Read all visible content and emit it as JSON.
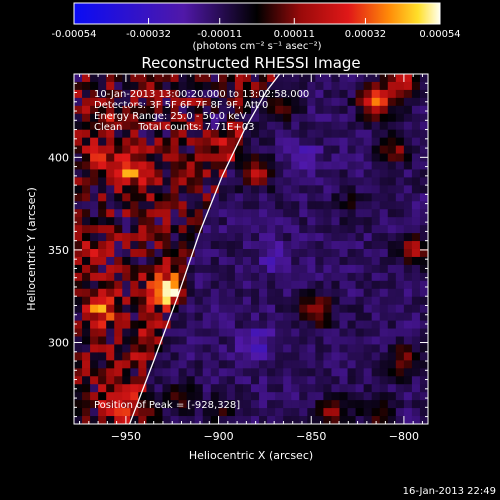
{
  "colorbar": {
    "ticks": [
      -0.00054,
      -0.00032,
      -0.00011,
      0.00011,
      0.00032,
      0.00054
    ],
    "tick_labels": [
      "-0.00054",
      "-0.00032",
      "-0.00011",
      "0.00011",
      "0.00032",
      "0.00054"
    ],
    "unit_label": "(photons cm⁻² s⁻¹ asec⁻²)",
    "range": [
      -0.00054,
      0.00054
    ]
  },
  "timestamp": "16-Jan-2013 22:49",
  "chart_data": {
    "type": "heatmap",
    "title": "Reconstructed RHESSI Image",
    "xlabel": "Heliocentric X (arcsec)",
    "ylabel": "Heliocentric Y (arcsec)",
    "xlim": [
      -978,
      -787
    ],
    "ylim": [
      256,
      445
    ],
    "xticks": [
      -950,
      -900,
      -850,
      -800
    ],
    "yticks": [
      300,
      350,
      400
    ],
    "annotations": [
      "10-Jan-2013 13:00:20.000 to 13:02:58.000",
      "Detectors: 3F 5F 6F 7F 8F 9F, Att 0",
      "Energy Range: 25.0 - 50.0 keV",
      "Clean     Total counts: 7.71E+03",
      "Position of Peak = [-928,328]"
    ],
    "peak": {
      "x": -928,
      "y": 328
    },
    "limb_curve": {
      "x": [
        -948,
        -935,
        -922,
        -910,
        -898,
        -886,
        -874,
        -867
      ],
      "y": [
        256,
        290,
        325,
        360,
        390,
        415,
        436,
        445
      ]
    },
    "sources": [
      {
        "x": -928,
        "y": 328,
        "value": 0.00054
      },
      {
        "x": -963,
        "y": 318,
        "value": 0.0003
      },
      {
        "x": -938,
        "y": 300,
        "value": 0.00018
      },
      {
        "x": -955,
        "y": 268,
        "value": 0.00034
      },
      {
        "x": -940,
        "y": 262,
        "value": 0.00022
      },
      {
        "x": -920,
        "y": 270,
        "value": 0.00016
      },
      {
        "x": -900,
        "y": 262,
        "value": 0.00012
      },
      {
        "x": -948,
        "y": 392,
        "value": 0.00034
      },
      {
        "x": -965,
        "y": 400,
        "value": 0.0002
      },
      {
        "x": -970,
        "y": 350,
        "value": 0.00018
      },
      {
        "x": -960,
        "y": 425,
        "value": 0.00012
      },
      {
        "x": -880,
        "y": 392,
        "value": 0.0003
      },
      {
        "x": -892,
        "y": 410,
        "value": 0.00022
      },
      {
        "x": -866,
        "y": 428,
        "value": 0.00016
      },
      {
        "x": -847,
        "y": 318,
        "value": 0.00028
      },
      {
        "x": -838,
        "y": 262,
        "value": 0.00024
      },
      {
        "x": -815,
        "y": 430,
        "value": 0.00045
      },
      {
        "x": -800,
        "y": 440,
        "value": 0.00035
      },
      {
        "x": -805,
        "y": 405,
        "value": 0.00022
      },
      {
        "x": -795,
        "y": 350,
        "value": 0.00028
      },
      {
        "x": -800,
        "y": 290,
        "value": 0.00022
      },
      {
        "x": -815,
        "y": 262,
        "value": 0.00016
      },
      {
        "x": -830,
        "y": 375,
        "value": 0.0001
      },
      {
        "x": -870,
        "y": 345,
        "value": -0.00012
      },
      {
        "x": -880,
        "y": 300,
        "value": -0.00015
      },
      {
        "x": -855,
        "y": 400,
        "value": -0.00012
      },
      {
        "x": -900,
        "y": 420,
        "value": -0.0001
      }
    ]
  }
}
